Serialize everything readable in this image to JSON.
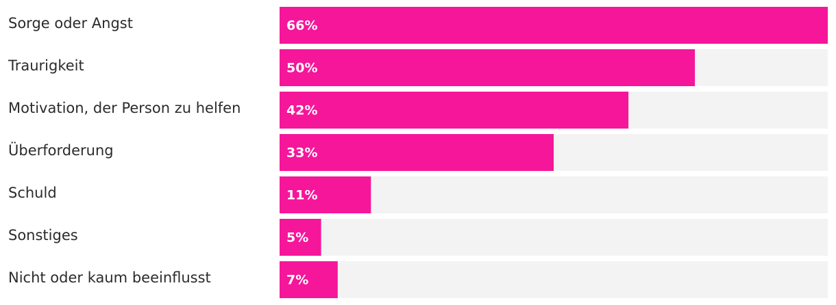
{
  "chart_data": {
    "type": "bar",
    "orientation": "horizontal",
    "categories": [
      "Sorge oder Angst",
      "Traurigkeit",
      "Motivation, der Person zu helfen",
      "Überforderung",
      "Schuld",
      "Sonstiges",
      "Nicht oder kaum beeinflusst"
    ],
    "values": [
      66,
      50,
      42,
      33,
      11,
      5,
      7
    ],
    "value_labels": [
      "66%",
      "50%",
      "42%",
      "33%",
      "11%",
      "5%",
      "7%"
    ],
    "color": "#f5169a",
    "xlim": [
      0,
      66
    ]
  }
}
